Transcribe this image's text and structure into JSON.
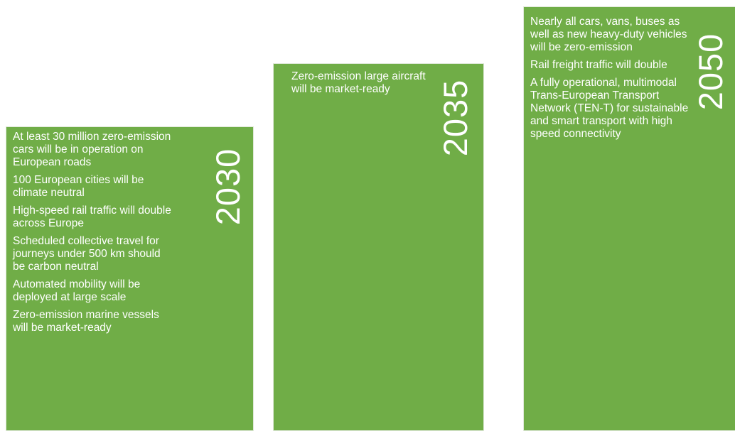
{
  "panels": [
    {
      "year": "2030",
      "items": [
        "At least 30 million zero-emission cars will be in operation on European roads",
        "100 European cities will be climate neutral",
        "High-speed rail traffic will double across Europe",
        "Scheduled collective travel for journeys under 500 km should be carbon neutral",
        "Automated mobility will be deployed at large scale",
        "Zero-emission marine vessels will be market-ready"
      ]
    },
    {
      "year": "2035",
      "items": [
        "Zero-emission large aircraft will be market-ready"
      ]
    },
    {
      "year": "2050",
      "items": [
        "Nearly all cars, vans, buses as well as new heavy-duty vehicles will be zero-emission",
        "Rail freight traffic will double",
        "A fully operational, multimodal Trans-European Transport Network (TEN-T) for sustainable and smart transport with high speed connectivity"
      ]
    }
  ],
  "colors": {
    "panel_green": "#70ad47",
    "text": "#ffffff",
    "background": "#ffffff"
  }
}
